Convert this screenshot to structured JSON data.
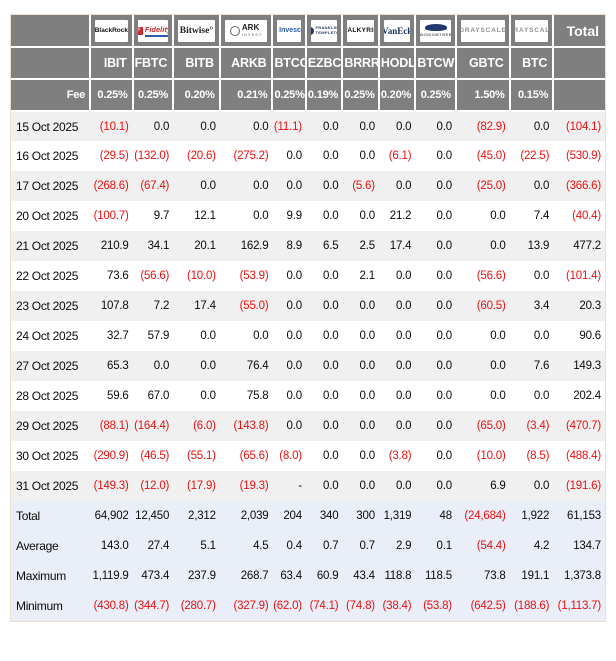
{
  "header": {
    "fee_label": "Fee",
    "total_label": "Total"
  },
  "colors": {
    "header_bg": "#7f7f7f",
    "negative": "#ee0f0f",
    "summary_bg": "#e9eef8",
    "stripe": "#f0f0f0"
  },
  "chart_data": {
    "type": "table",
    "providers": [
      {
        "name": "BlackRock",
        "logo": "blackrock-logo"
      },
      {
        "name": "Fidelity",
        "logo": "fidelity-logo"
      },
      {
        "name": "Bitwise",
        "logo": "bitwise-logo"
      },
      {
        "name": "ARK Invest",
        "logo": "ark-invest-logo"
      },
      {
        "name": "Invesco",
        "logo": "invesco-logo"
      },
      {
        "name": "Franklin Templeton",
        "logo": "franklin-templeton-logo"
      },
      {
        "name": "Valkyrie",
        "logo": "valkyrie-logo"
      },
      {
        "name": "VanEck",
        "logo": "vaneck-logo"
      },
      {
        "name": "WisdomTree",
        "logo": "wisdomtree-logo"
      },
      {
        "name": "Grayscale",
        "logo": "grayscale-logo"
      },
      {
        "name": "Grayscale",
        "logo": "grayscale-logo"
      }
    ],
    "columns": [
      "IBIT",
      "FBTC",
      "BITB",
      "ARKB",
      "BTCO",
      "EZBC",
      "BRRR",
      "HODL",
      "BTCW",
      "GBTC",
      "BTC"
    ],
    "fees": [
      "0.25%",
      "0.25%",
      "0.20%",
      "0.21%",
      "0.25%",
      "0.19%",
      "0.25%",
      "0.20%",
      "0.25%",
      "1.50%",
      "0.15%"
    ],
    "rows": [
      {
        "date": "15 Oct 2025",
        "values": [
          "(10.1)",
          "0.0",
          "0.0",
          "0.0",
          "(11.1)",
          "0.0",
          "0.0",
          "0.0",
          "0.0",
          "(82.9)",
          "0.0",
          "(104.1)"
        ]
      },
      {
        "date": "16 Oct 2025",
        "values": [
          "(29.5)",
          "(132.0)",
          "(20.6)",
          "(275.2)",
          "0.0",
          "0.0",
          "0.0",
          "(6.1)",
          "0.0",
          "(45.0)",
          "(22.5)",
          "(530.9)"
        ]
      },
      {
        "date": "17 Oct 2025",
        "values": [
          "(268.6)",
          "(67.4)",
          "0.0",
          "0.0",
          "0.0",
          "0.0",
          "(5.6)",
          "0.0",
          "0.0",
          "(25.0)",
          "0.0",
          "(366.6)"
        ]
      },
      {
        "date": "20 Oct 2025",
        "values": [
          "(100.7)",
          "9.7",
          "12.1",
          "0.0",
          "9.9",
          "0.0",
          "0.0",
          "21.2",
          "0.0",
          "0.0",
          "7.4",
          "(40.4)"
        ]
      },
      {
        "date": "21 Oct 2025",
        "values": [
          "210.9",
          "34.1",
          "20.1",
          "162.9",
          "8.9",
          "6.5",
          "2.5",
          "17.4",
          "0.0",
          "0.0",
          "13.9",
          "477.2"
        ]
      },
      {
        "date": "22 Oct 2025",
        "values": [
          "73.6",
          "(56.6)",
          "(10.0)",
          "(53.9)",
          "0.0",
          "0.0",
          "2.1",
          "0.0",
          "0.0",
          "(56.6)",
          "0.0",
          "(101.4)"
        ]
      },
      {
        "date": "23 Oct 2025",
        "values": [
          "107.8",
          "7.2",
          "17.4",
          "(55.0)",
          "0.0",
          "0.0",
          "0.0",
          "0.0",
          "0.0",
          "(60.5)",
          "3.4",
          "20.3"
        ]
      },
      {
        "date": "24 Oct 2025",
        "values": [
          "32.7",
          "57.9",
          "0.0",
          "0.0",
          "0.0",
          "0.0",
          "0.0",
          "0.0",
          "0.0",
          "0.0",
          "0.0",
          "90.6"
        ]
      },
      {
        "date": "27 Oct 2025",
        "values": [
          "65.3",
          "0.0",
          "0.0",
          "76.4",
          "0.0",
          "0.0",
          "0.0",
          "0.0",
          "0.0",
          "0.0",
          "7.6",
          "149.3"
        ]
      },
      {
        "date": "28 Oct 2025",
        "values": [
          "59.6",
          "67.0",
          "0.0",
          "75.8",
          "0.0",
          "0.0",
          "0.0",
          "0.0",
          "0.0",
          "0.0",
          "0.0",
          "202.4"
        ]
      },
      {
        "date": "29 Oct 2025",
        "values": [
          "(88.1)",
          "(164.4)",
          "(6.0)",
          "(143.8)",
          "0.0",
          "0.0",
          "0.0",
          "0.0",
          "0.0",
          "(65.0)",
          "(3.4)",
          "(470.7)"
        ]
      },
      {
        "date": "30 Oct 2025",
        "values": [
          "(290.9)",
          "(46.5)",
          "(55.1)",
          "(65.6)",
          "(8.0)",
          "0.0",
          "0.0",
          "(3.8)",
          "0.0",
          "(10.0)",
          "(8.5)",
          "(488.4)"
        ]
      },
      {
        "date": "31 Oct 2025",
        "values": [
          "(149.3)",
          "(12.0)",
          "(17.9)",
          "(19.3)",
          "-",
          "0.0",
          "0.0",
          "0.0",
          "0.0",
          "6.9",
          "0.0",
          "(191.6)"
        ]
      }
    ],
    "summary": [
      {
        "label": "Total",
        "values": [
          "64,902",
          "12,450",
          "2,312",
          "2,039",
          "204",
          "340",
          "300",
          "1,319",
          "48",
          "(24,684)",
          "1,922",
          "61,153"
        ]
      },
      {
        "label": "Average",
        "values": [
          "143.0",
          "27.4",
          "5.1",
          "4.5",
          "0.4",
          "0.7",
          "0.7",
          "2.9",
          "0.1",
          "(54.4)",
          "4.2",
          "134.7"
        ]
      },
      {
        "label": "Maximum",
        "values": [
          "1,119.9",
          "473.4",
          "237.9",
          "268.7",
          "63.4",
          "60.9",
          "43.4",
          "118.8",
          "118.5",
          "73.8",
          "191.1",
          "1,373.8"
        ]
      },
      {
        "label": "Minimum",
        "values": [
          "(430.8)",
          "(344.7)",
          "(280.7)",
          "(327.9)",
          "(62.0)",
          "(74.1)",
          "(74.8)",
          "(38.4)",
          "(53.8)",
          "(642.5)",
          "(188.6)",
          "(1,113.7)"
        ]
      }
    ]
  }
}
